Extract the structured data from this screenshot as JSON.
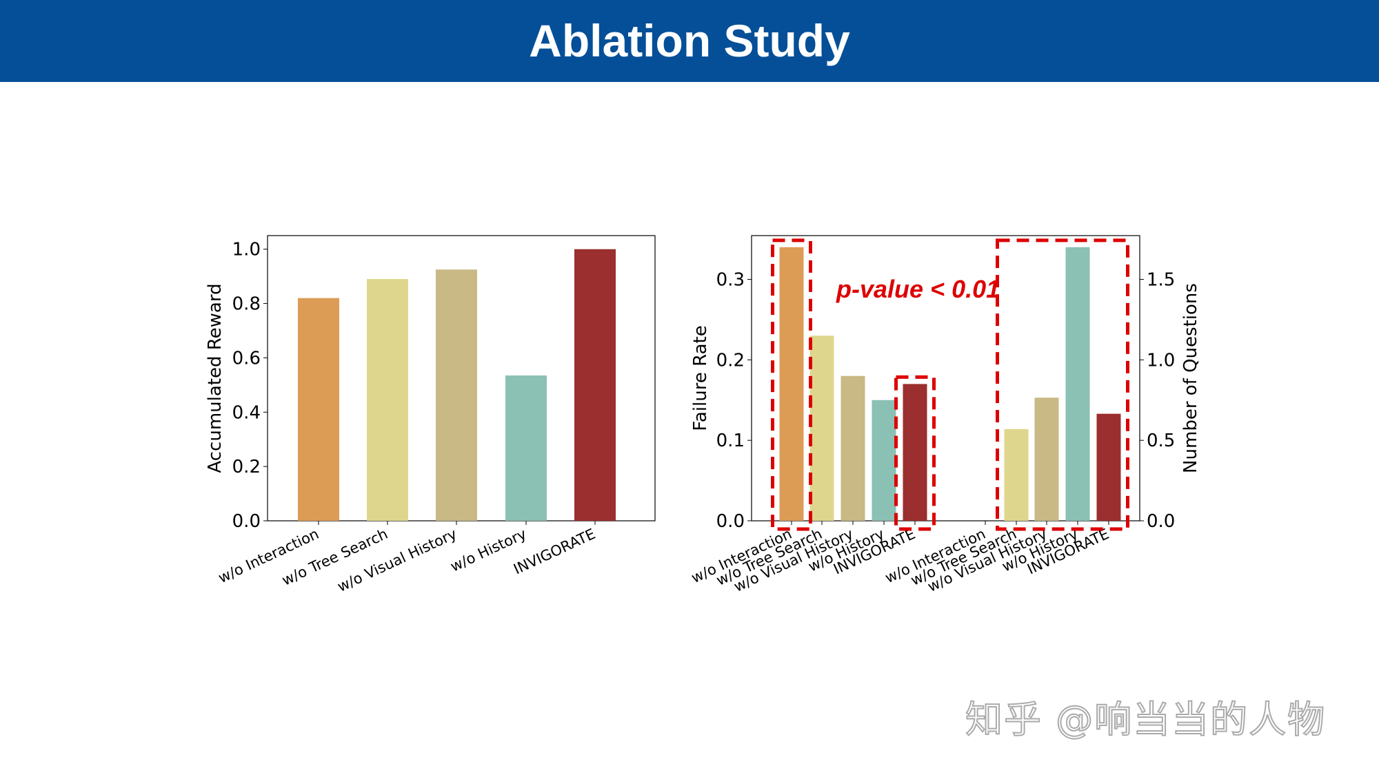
{
  "slide": {
    "title": "Ablation Study",
    "watermark": "知乎 @响当当的人物"
  },
  "colors": {
    "header": "#054f98",
    "highlight": "#dd0000"
  },
  "chart_data": [
    {
      "type": "bar",
      "title": "",
      "categories": [
        "w/o Interaction",
        "w/o Tree Search",
        "w/o Visual History",
        "w/o History",
        "INVIGORATE"
      ],
      "values": [
        0.82,
        0.89,
        0.925,
        0.535,
        1.0
      ],
      "colors": [
        "#dc9c56",
        "#dfd68e",
        "#c9b985",
        "#8bc0b4",
        "#9b2e2e"
      ],
      "xlabel": "",
      "ylabel": "Accumulated Reward",
      "ylim": [
        0,
        1.05
      ],
      "yticks": [
        "0.0",
        "0.2",
        "0.4",
        "0.6",
        "0.8",
        "1.0"
      ],
      "grid": false
    },
    {
      "type": "bar",
      "title": "",
      "ylabel": "Failure Rate",
      "y2label": "Number of Questions",
      "ylim": [
        0,
        0.3544
      ],
      "y2lim": [
        0,
        1.772
      ],
      "yticks": [
        "0.0",
        "0.1",
        "0.2",
        "0.3"
      ],
      "y2ticks": [
        "0.0",
        "0.5",
        "1.0",
        "1.5"
      ],
      "annotation": "p-value < 0.01",
      "grid": false,
      "series": [
        {
          "name": "Failure Rate",
          "axis": "left",
          "categories": [
            "w/o Interaction",
            "w/o Tree Search",
            "w/o Visual History",
            "w/o History",
            "INVIGORATE"
          ],
          "values": [
            0.34,
            0.23,
            0.18,
            0.15,
            0.17
          ],
          "colors": [
            "#dc9c56",
            "#dfd68e",
            "#c9b985",
            "#8bc0b4",
            "#9b2e2e"
          ]
        },
        {
          "name": "Number of Questions",
          "axis": "right",
          "categories": [
            "w/o Interaction",
            "w/o Tree Search",
            "w/o Visual History",
            "w/o History",
            "INVIGORATE"
          ],
          "values": [
            0.0,
            0.57,
            0.765,
            1.7,
            0.665
          ],
          "colors": [
            "#dc9c56",
            "#dfd68e",
            "#c9b985",
            "#8bc0b4",
            "#9b2e2e"
          ]
        }
      ],
      "highlights": [
        {
          "series": 0,
          "from": 0,
          "to": 0
        },
        {
          "series": 0,
          "from": 4,
          "to": 4
        },
        {
          "series": 1,
          "from": 1,
          "to": 4
        }
      ]
    }
  ]
}
